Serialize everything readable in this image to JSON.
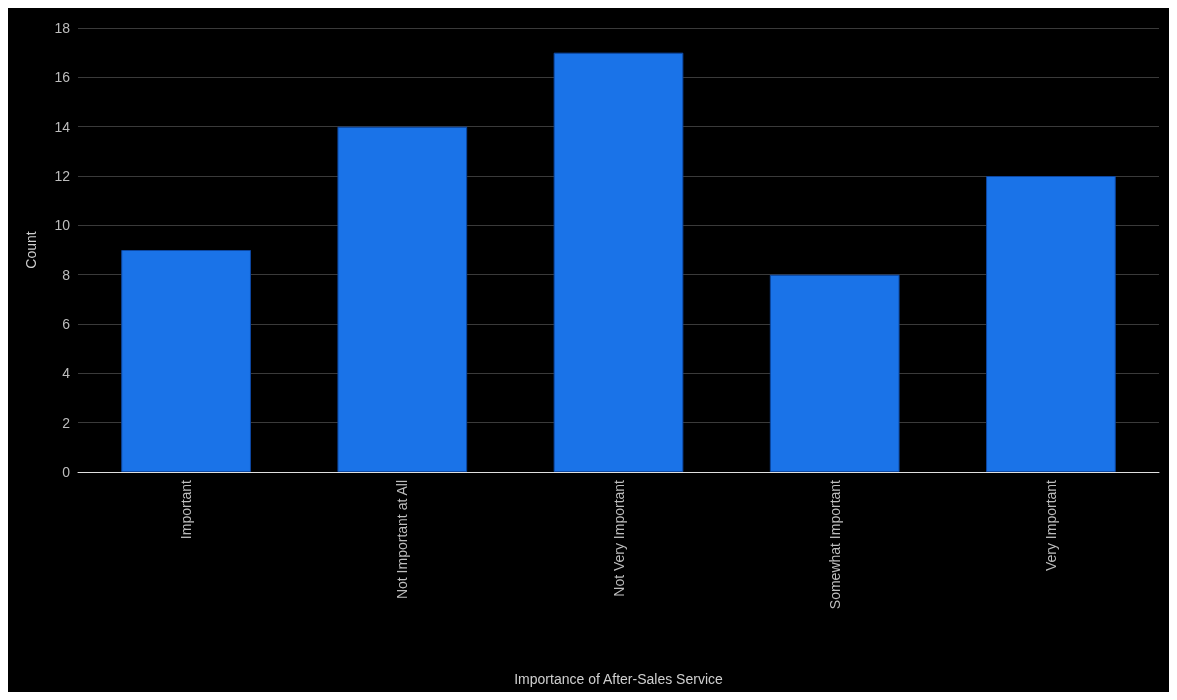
{
  "chart_data": {
    "type": "bar",
    "xlabel": "Importance of After-Sales Service",
    "ylabel": "Count",
    "categories": [
      "Important",
      "Not Important at All",
      "Not Very Important",
      "Somewhat Important",
      "Very Important"
    ],
    "values": [
      9,
      14,
      17,
      8,
      12
    ],
    "color": "#1a73e8",
    "ylim": [
      0,
      18
    ],
    "yticks": [
      0,
      2,
      4,
      6,
      8,
      10,
      12,
      14,
      16,
      18
    ],
    "grid": "y"
  }
}
